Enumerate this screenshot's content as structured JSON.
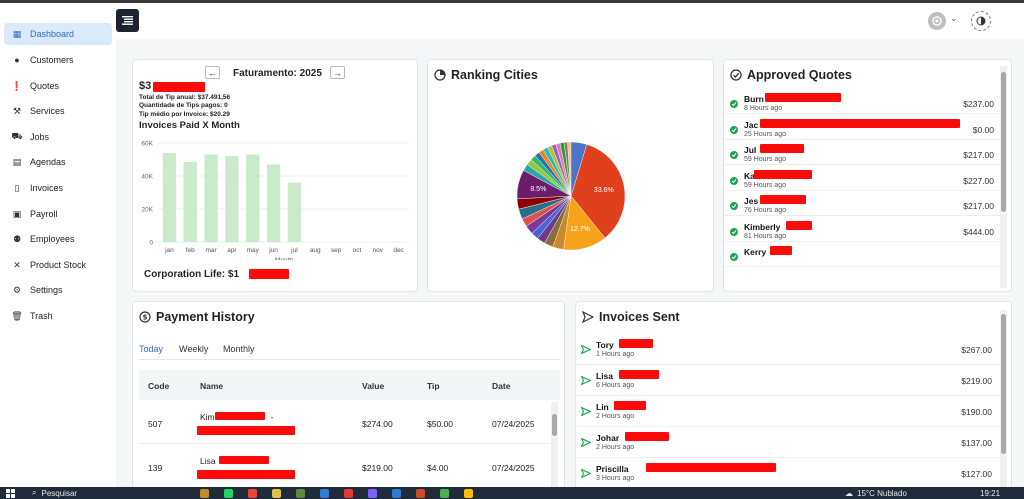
{
  "sidebar": {
    "items": [
      {
        "label": "Dashboard",
        "icon": "grid-icon",
        "glyph": "▦",
        "active": true
      },
      {
        "label": "Customers",
        "icon": "map-pin-icon",
        "glyph": "●"
      },
      {
        "label": "Quotes",
        "icon": "exclamation-circle-icon",
        "glyph": "❗"
      },
      {
        "label": "Services",
        "icon": "tools-icon",
        "glyph": "⚒"
      },
      {
        "label": "Jobs",
        "icon": "briefcase-icon",
        "glyph": "⛟"
      },
      {
        "label": "Agendas",
        "icon": "calendar-icon",
        "glyph": "▤"
      },
      {
        "label": "Invoices",
        "icon": "file-icon",
        "glyph": "▯"
      },
      {
        "label": "Payroll",
        "icon": "money-icon",
        "glyph": "▣"
      },
      {
        "label": "Employees",
        "icon": "users-icon",
        "glyph": "⚉"
      },
      {
        "label": "Product Stock",
        "icon": "tools-cross-icon",
        "glyph": "✕"
      },
      {
        "label": "Settings",
        "icon": "gear-icon",
        "glyph": "⚙"
      },
      {
        "label": "Trash",
        "icon": "trash-icon",
        "glyph": "🗑"
      }
    ]
  },
  "faturamento": {
    "amount_prefix": "$3",
    "title": "Faturamento: 2025",
    "total_tip": "Total de Tip anual: $37.491,56",
    "tips_count": "Quantidade de Tips pagos: 0",
    "tip_avg": "Tip médio por Invoice: $20.29",
    "chart_title": "Invoices Paid X Month",
    "corporation_life": "Corporation Life: $1"
  },
  "chart_data": [
    {
      "type": "bar",
      "title": "Invoices Paid X Month",
      "categories": [
        "jan",
        "feb",
        "mar",
        "apr",
        "may",
        "jun",
        "jul",
        "aug",
        "sep",
        "oct",
        "nov",
        "dec"
      ],
      "values": [
        54000,
        48500,
        53000,
        52000,
        53000,
        47000,
        36000,
        0,
        0,
        0,
        0,
        0
      ],
      "xlabel": "Month",
      "ylabel": "",
      "ylim": [
        0,
        60000
      ],
      "yticks": [
        "0",
        "20K",
        "40K",
        "60K"
      ],
      "color": "#c9ebc9",
      "grid": true
    },
    {
      "type": "pie",
      "title": "Ranking Cities",
      "slices": [
        {
          "value": 33.6,
          "label": "33.6%",
          "color": "#e0401d"
        },
        {
          "value": 12.7,
          "label": "12.7%",
          "color": "#f7a21b"
        },
        {
          "value": 3.2,
          "label": "",
          "color": "#c98a2b"
        },
        {
          "value": 2.6,
          "label": "",
          "color": "#8a6d3b"
        },
        {
          "value": 2.4,
          "label": "",
          "color": "#6d3b8a"
        },
        {
          "value": 2.2,
          "label": "",
          "color": "#4666d5"
        },
        {
          "value": 2.6,
          "label": "",
          "color": "#7a3a9a"
        },
        {
          "value": 2.4,
          "label": "",
          "color": "#d9534f"
        },
        {
          "value": 3.0,
          "label": "",
          "color": "#2b6e8a"
        },
        {
          "value": 3.0,
          "label": "",
          "color": "#8b0000"
        },
        {
          "value": 8.5,
          "label": "8.5%",
          "color": "#6b1c6b"
        },
        {
          "value": 2.0,
          "label": "",
          "color": "#2aa6a6"
        },
        {
          "value": 1.8,
          "label": "",
          "color": "#94c83d"
        },
        {
          "value": 1.6,
          "label": "",
          "color": "#3cb371"
        },
        {
          "value": 1.5,
          "label": "",
          "color": "#1f77b4"
        },
        {
          "value": 1.4,
          "label": "",
          "color": "#ff7f0e"
        },
        {
          "value": 1.4,
          "label": "",
          "color": "#17becf"
        },
        {
          "value": 1.3,
          "label": "",
          "color": "#bcbd22"
        },
        {
          "value": 1.3,
          "label": "",
          "color": "#9467bd"
        },
        {
          "value": 1.2,
          "label": "",
          "color": "#e377c2"
        },
        {
          "value": 1.2,
          "label": "",
          "color": "#2ca02c"
        },
        {
          "value": 1.0,
          "label": "",
          "color": "#7f7f7f"
        },
        {
          "value": 1.0,
          "label": "",
          "color": "#ffbb78"
        },
        {
          "value": 4.6,
          "label": "",
          "color": "#4a76c9"
        }
      ]
    }
  ],
  "ranking": {
    "title": "Ranking Cities"
  },
  "approved": {
    "title": "Approved Quotes",
    "items": [
      {
        "name": "Burn",
        "time": "8 Hours ago",
        "amount": "$237.00"
      },
      {
        "name": "Jac",
        "time": "25 Hours ago",
        "amount": "$0.00"
      },
      {
        "name": "Jul",
        "time": "59 Hours ago",
        "amount": "$217.00"
      },
      {
        "name": "Ka",
        "time": "59 Hours ago",
        "amount": "$227.00"
      },
      {
        "name": "Jes",
        "time": "76 Hours ago",
        "amount": "$217.00"
      },
      {
        "name": "Kimberly",
        "time": "81 Hours ago",
        "amount": "$444.00"
      },
      {
        "name": "Kerry",
        "time": "",
        "amount": ""
      }
    ]
  },
  "payment": {
    "title": "Payment History",
    "tabs": [
      "Today",
      "Weekly",
      "Monthly"
    ],
    "columns": [
      "Code",
      "Name",
      "Value",
      "Tip",
      "Date"
    ],
    "rows": [
      {
        "code": "507",
        "name": "Kim",
        "suffix": "-",
        "value": "$274.00",
        "tip": "$50.00",
        "date": "07/24/2025"
      },
      {
        "code": "139",
        "name": "Lisa",
        "suffix": "",
        "value": "$219.00",
        "tip": "$4.00",
        "date": "07/24/2025"
      }
    ]
  },
  "invoices": {
    "title": "Invoices Sent",
    "items": [
      {
        "name": "Tory",
        "time": "1 Hours ago",
        "amount": "$267.00"
      },
      {
        "name": "Lisa",
        "time": "6 Hours ago",
        "amount": "$219.00"
      },
      {
        "name": "Lin",
        "time": "2 Hours ago",
        "amount": "$190.00"
      },
      {
        "name": "Johar",
        "time": "2 Hours ago",
        "amount": "$137.00"
      },
      {
        "name": "Priscilla",
        "time": "3 Hours ago",
        "amount": "$127.00"
      }
    ]
  },
  "taskbar": {
    "search": "Pesquisar",
    "weather": "15°C  Nublado",
    "time": "19:21"
  }
}
